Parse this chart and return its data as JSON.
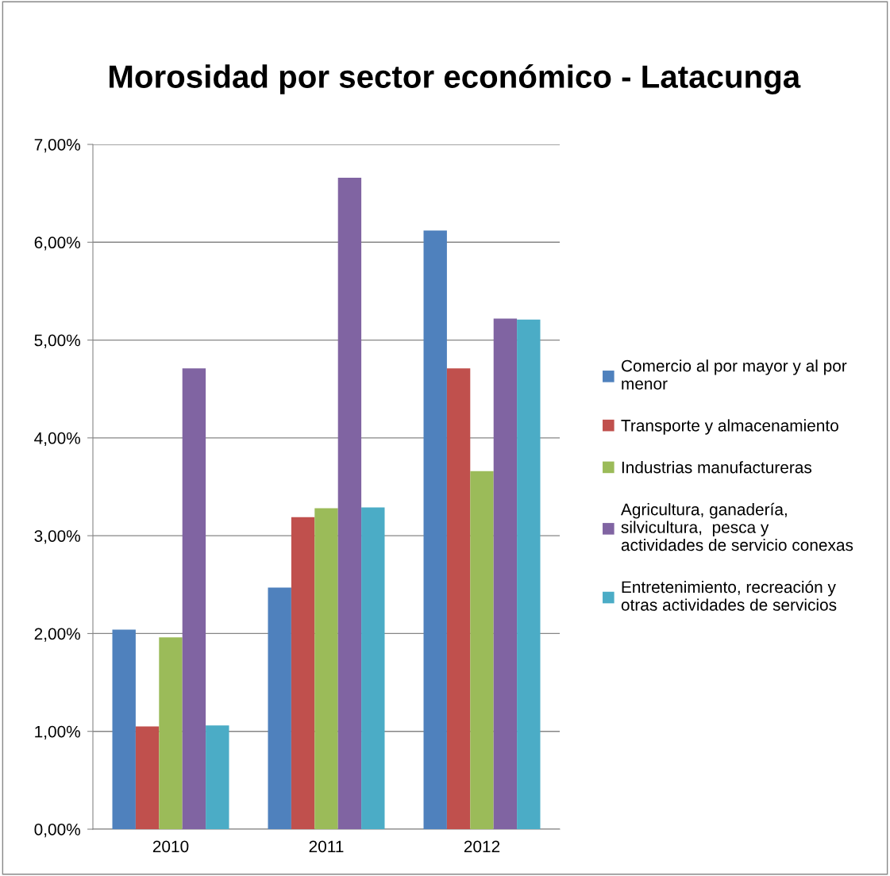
{
  "chart_data": {
    "type": "bar",
    "title": "Morosidad por sector económico - Latacunga",
    "categories": [
      "2010",
      "2011",
      "2012"
    ],
    "series": [
      {
        "name": "Comercio al por mayor y al por menor",
        "color": "#4f81bd",
        "values": [
          2.04,
          2.47,
          6.12
        ]
      },
      {
        "name": "Transporte y almacenamiento",
        "color": "#c0504d",
        "values": [
          1.05,
          3.19,
          4.71
        ]
      },
      {
        "name": "Industrias manufactureras",
        "color": "#9bbb59",
        "values": [
          1.96,
          3.28,
          3.66
        ]
      },
      {
        "name": "Agricultura, ganadería, silvicultura,  pesca y actividades de servicio conexas",
        "color": "#8064a2",
        "values": [
          4.71,
          6.66,
          5.22
        ]
      },
      {
        "name": "Entretenimiento, recreación y otras actividades de servicios",
        "color": "#4bacc6",
        "values": [
          1.06,
          3.29,
          5.21
        ]
      }
    ],
    "ylim": [
      0,
      7
    ],
    "yticks": [
      {
        "value": 0,
        "label": "0,00%"
      },
      {
        "value": 1,
        "label": "1,00%"
      },
      {
        "value": 2,
        "label": "2,00%"
      },
      {
        "value": 3,
        "label": "3,00%"
      },
      {
        "value": 4,
        "label": "4,00%"
      },
      {
        "value": 5,
        "label": "5,00%"
      },
      {
        "value": 6,
        "label": "6,00%"
      },
      {
        "value": 7,
        "label": "7,00%"
      }
    ],
    "grid": "y",
    "legend": "right"
  }
}
